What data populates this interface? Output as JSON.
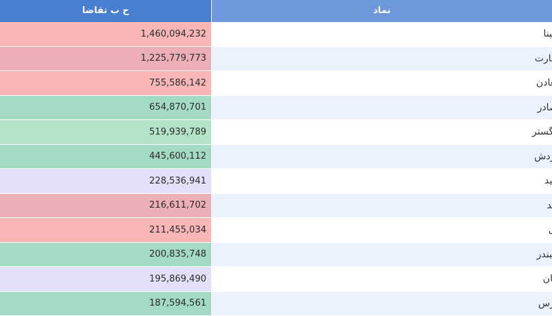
{
  "table": {
    "headers": {
      "value": "ح ب تقاضا",
      "symbol": "نماد"
    },
    "rows": [
      {
        "symbol": "شپنا",
        "value": "1,460,094,232",
        "color": "#f8b6b7"
      },
      {
        "symbol": "تجارت",
        "value": "1,225,779,773",
        "color": "#ebafb5"
      },
      {
        "symbol": "معادن",
        "value": "755,586,142",
        "color": "#f8b6b7"
      },
      {
        "symbol": "بصادر",
        "value": "654,870,701",
        "color": "#a3dac2"
      },
      {
        "symbol": "خگستر",
        "value": "519,939,789",
        "color": "#b3e4c8"
      },
      {
        "symbol": "گردش",
        "value": "445,600,112",
        "color": "#a3dac2"
      },
      {
        "symbol": "امید",
        "value": "228,536,941",
        "color": "#e1e0f8"
      },
      {
        "symbol": "آیند",
        "value": "216,611,702",
        "color": "#ebafb5"
      },
      {
        "symbol": "گل",
        "value": "211,455,034",
        "color": "#f8b6b7"
      },
      {
        "symbol": "شبندر",
        "value": "200,835,748",
        "color": "#a3dac2"
      },
      {
        "symbol": "ریان",
        "value": "195,869,490",
        "color": "#e1e0f8"
      },
      {
        "symbol": "پارس",
        "value": "187,594,561",
        "color": "#a3dac2"
      }
    ]
  }
}
